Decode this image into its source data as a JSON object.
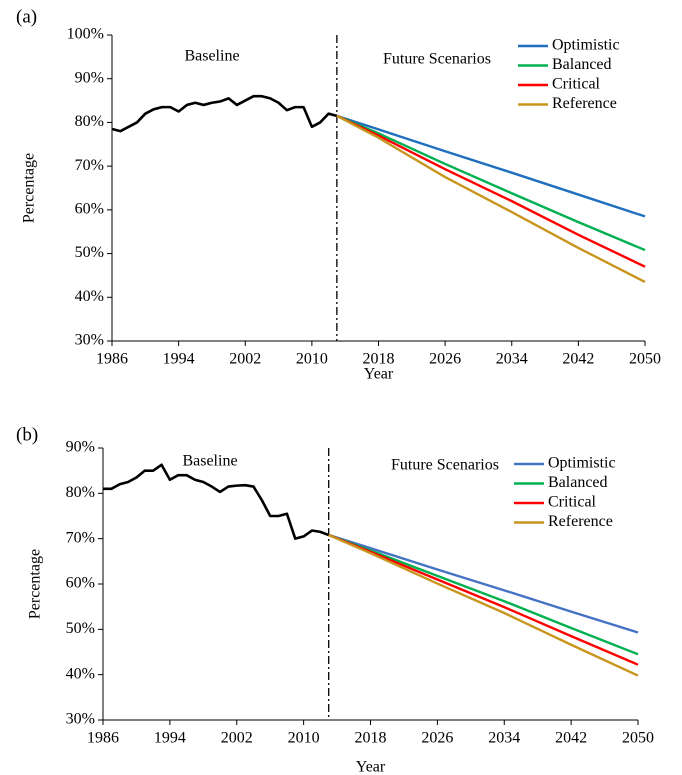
{
  "chart_data": [
    {
      "type": "line",
      "label": "(a)",
      "x_label": "Year",
      "y_label": "Percentage",
      "annotations": [
        "Baseline",
        "Future Scenarios"
      ],
      "x": [
        1986,
        1987,
        1988,
        1989,
        1990,
        1991,
        1992,
        1993,
        1994,
        1995,
        1996,
        1997,
        1998,
        1999,
        2000,
        2001,
        2002,
        2003,
        2004,
        2005,
        2006,
        2007,
        2008,
        2009,
        2010,
        2011,
        2012,
        2013,
        2018,
        2026,
        2034,
        2042,
        2050
      ],
      "vline": 2013,
      "series": [
        {
          "color": "#000000",
          "values": [
            78.5,
            78,
            79,
            80,
            82,
            83,
            83.5,
            83.5,
            82.5,
            84,
            84.5,
            84,
            84.5,
            84.8,
            85.5,
            84,
            85,
            86,
            86,
            85.5,
            84.5,
            82.8,
            83.5,
            83.5,
            79,
            80,
            82,
            81.5,
            null,
            null,
            null,
            null,
            null
          ]
        },
        {
          "name": "Optimistic",
          "color": "#1f6fbf",
          "values": [
            null,
            null,
            null,
            null,
            null,
            null,
            null,
            null,
            null,
            null,
            null,
            null,
            null,
            null,
            null,
            null,
            null,
            null,
            null,
            null,
            null,
            null,
            null,
            null,
            null,
            null,
            null,
            81.5,
            78.4,
            73.4,
            68.5,
            63.5,
            58.5
          ]
        },
        {
          "name": "Balanced",
          "color": "#00b050",
          "values": [
            null,
            null,
            null,
            null,
            null,
            null,
            null,
            null,
            null,
            null,
            null,
            null,
            null,
            null,
            null,
            null,
            null,
            null,
            null,
            null,
            null,
            null,
            null,
            null,
            null,
            null,
            null,
            81.5,
            77.5,
            70.5,
            63.8,
            57.2,
            50.8
          ]
        },
        {
          "name": "Critical",
          "color": "#ff0000",
          "values": [
            null,
            null,
            null,
            null,
            null,
            null,
            null,
            null,
            null,
            null,
            null,
            null,
            null,
            null,
            null,
            null,
            null,
            null,
            null,
            null,
            null,
            null,
            null,
            null,
            null,
            null,
            null,
            81.5,
            77,
            69.3,
            62,
            54.3,
            47
          ]
        },
        {
          "name": "Reference",
          "color": "#c8961e",
          "values": [
            null,
            null,
            null,
            null,
            null,
            null,
            null,
            null,
            null,
            null,
            null,
            null,
            null,
            null,
            null,
            null,
            null,
            null,
            null,
            null,
            null,
            null,
            null,
            null,
            null,
            null,
            null,
            81.5,
            76.5,
            67.5,
            59.5,
            51.3,
            43.5
          ]
        }
      ],
      "xlim": [
        1986,
        2050
      ],
      "xticks": [
        1986,
        1994,
        2002,
        2010,
        2018,
        2026,
        2034,
        2042,
        2050
      ],
      "ylim": [
        30,
        100
      ],
      "yticks": [
        {
          "value": 30,
          "label": "30%"
        },
        {
          "value": 40,
          "label": "40%"
        },
        {
          "value": 50,
          "label": "50%"
        },
        {
          "value": 60,
          "label": "60%"
        },
        {
          "value": 70,
          "label": "70%"
        },
        {
          "value": 80,
          "label": "80%"
        },
        {
          "value": 90,
          "label": "90%"
        },
        {
          "value": 100,
          "label": "100%"
        }
      ],
      "legend": "upper right",
      "grid": false
    },
    {
      "type": "line",
      "label": "(b)",
      "x_label": "Year",
      "y_label": "Percentage",
      "annotations": [
        "Baseline",
        "Future Scenarios"
      ],
      "x": [
        1986,
        1987,
        1988,
        1989,
        1990,
        1991,
        1992,
        1993,
        1994,
        1995,
        1996,
        1997,
        1998,
        1999,
        2000,
        2001,
        2002,
        2003,
        2004,
        2005,
        2006,
        2007,
        2008,
        2009,
        2010,
        2011,
        2012,
        2013,
        2018,
        2026,
        2034,
        2042,
        2050
      ],
      "vline": 2013,
      "series": [
        {
          "color": "#000000",
          "values": [
            81,
            81,
            82,
            82.5,
            83.5,
            85,
            85,
            86.3,
            83,
            84,
            84,
            83,
            82.5,
            81.5,
            80.3,
            81.5,
            81.7,
            81.8,
            81.5,
            78.5,
            75,
            75,
            75.5,
            70,
            70.5,
            71.8,
            71.5,
            70.8,
            null,
            null,
            null,
            null,
            null
          ]
        },
        {
          "name": "Optimistic",
          "color": "#4472c4",
          "values": [
            null,
            null,
            null,
            null,
            null,
            null,
            null,
            null,
            null,
            null,
            null,
            null,
            null,
            null,
            null,
            null,
            null,
            null,
            null,
            null,
            null,
            null,
            null,
            null,
            null,
            null,
            null,
            70.8,
            67.9,
            63.2,
            58.6,
            53.9,
            49.3
          ]
        },
        {
          "name": "Balanced",
          "color": "#00b050",
          "values": [
            null,
            null,
            null,
            null,
            null,
            null,
            null,
            null,
            null,
            null,
            null,
            null,
            null,
            null,
            null,
            null,
            null,
            null,
            null,
            null,
            null,
            null,
            null,
            null,
            null,
            null,
            null,
            70.8,
            67.4,
            61.8,
            56.2,
            50.3,
            44.5
          ]
        },
        {
          "name": "Critical",
          "color": "#ff0000",
          "values": [
            null,
            null,
            null,
            null,
            null,
            null,
            null,
            null,
            null,
            null,
            null,
            null,
            null,
            null,
            null,
            null,
            null,
            null,
            null,
            null,
            null,
            null,
            null,
            null,
            null,
            null,
            null,
            70.8,
            67.1,
            61,
            54.9,
            48.5,
            42.2
          ]
        },
        {
          "name": "Reference",
          "color": "#c8961e",
          "values": [
            null,
            null,
            null,
            null,
            null,
            null,
            null,
            null,
            null,
            null,
            null,
            null,
            null,
            null,
            null,
            null,
            null,
            null,
            null,
            null,
            null,
            null,
            null,
            null,
            null,
            null,
            null,
            70.8,
            66.8,
            60.1,
            53.6,
            46.6,
            39.8
          ]
        }
      ],
      "xlim": [
        1986,
        2050
      ],
      "xticks": [
        1986,
        1994,
        2002,
        2010,
        2018,
        2026,
        2034,
        2042,
        2050
      ],
      "ylim": [
        30,
        90
      ],
      "yticks": [
        {
          "value": 30,
          "label": "30%"
        },
        {
          "value": 40,
          "label": "40%"
        },
        {
          "value": 50,
          "label": "50%"
        },
        {
          "value": 60,
          "label": "60%"
        },
        {
          "value": 70,
          "label": "70%"
        },
        {
          "value": 80,
          "label": "80%"
        },
        {
          "value": 90,
          "label": "90%"
        }
      ],
      "legend": "upper right",
      "grid": false
    }
  ]
}
